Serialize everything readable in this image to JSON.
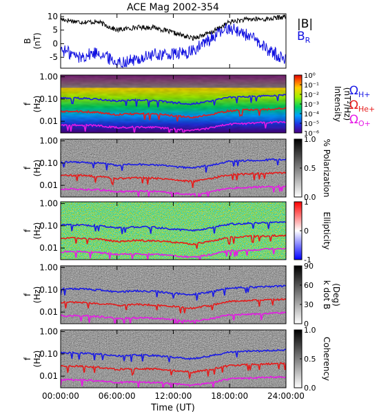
{
  "title": "ACE Mag 2002-354",
  "x_axis": {
    "label": "Time (UT)",
    "tick_labels": [
      "00:00:00",
      "06:00:00",
      "12:00:00",
      "18:00:00",
      "24:00:00"
    ],
    "range_hours": [
      0,
      24
    ]
  },
  "panels": [
    {
      "id": "b-field",
      "type": "line",
      "ylabel_top": "B",
      "ylabel_bottom": "(nT)",
      "ylim": [
        -9,
        11
      ],
      "yticks": [
        "10",
        "5",
        "0",
        "-5"
      ],
      "legend": [
        {
          "label": "|B|",
          "color": "#000000"
        },
        {
          "label": "B",
          "subscript": "R",
          "color": "#1010e0"
        }
      ]
    },
    {
      "id": "intensity",
      "type": "heatmap",
      "ylabel_top": "f",
      "ylabel_bottom": "(Hz)",
      "ylim_log": [
        0.003,
        1.2
      ],
      "yticks": [
        "1.00",
        "0.10",
        "0.01"
      ],
      "colorbar": {
        "palette": "rainbow",
        "labels": [
          "10⁰",
          "10⁻¹",
          "10⁻²",
          "10⁻³",
          "10⁻⁴",
          "10⁻⁵",
          "10⁻⁶"
        ],
        "title_line1": "Intensity",
        "title_line2": "(nT²/Hz)"
      },
      "ion_legend": [
        {
          "symbol": "Ω",
          "subscript": "H+",
          "color": "#1a1ae6"
        },
        {
          "symbol": "Ω",
          "subscript": "He+",
          "color": "#e61a1a"
        },
        {
          "symbol": "Ω",
          "subscript": "O+",
          "color": "#e619e6"
        }
      ]
    },
    {
      "id": "polarization",
      "type": "heatmap",
      "ylabel_top": "f",
      "ylabel_bottom": "(Hz)",
      "yticks": [
        "1.00",
        "0.10",
        "0.01"
      ],
      "colorbar": {
        "palette": "gray",
        "labels": [
          "1.0",
          "0.5",
          "0.0"
        ],
        "title_line1": "% Polarization",
        "title_line2": ""
      }
    },
    {
      "id": "ellipticity",
      "type": "heatmap",
      "ylabel_top": "f",
      "ylabel_bottom": "(Hz)",
      "yticks": [
        "1.00",
        "0.10",
        "0.01"
      ],
      "colorbar": {
        "palette": "bwr",
        "labels": [
          "1",
          "0",
          "-1"
        ],
        "title_line1": "Ellipticity",
        "title_line2": ""
      }
    },
    {
      "id": "kdotb",
      "type": "heatmap",
      "ylabel_top": "f",
      "ylabel_bottom": "(Hz)",
      "yticks": [
        "1.00",
        "0.10",
        "0.01"
      ],
      "colorbar": {
        "palette": "gray",
        "labels": [
          "90",
          "60",
          "30",
          "0"
        ],
        "title_line1": "k dot B",
        "title_line2": "(Deg)"
      }
    },
    {
      "id": "coherency",
      "type": "heatmap",
      "ylabel_top": "f",
      "ylabel_bottom": "(Hz)",
      "yticks": [
        "1.00",
        "0.10",
        "0.01"
      ],
      "colorbar": {
        "palette": "gray",
        "labels": [
          "1.0",
          "0.5",
          "0.0"
        ],
        "title_line1": "Coherency",
        "title_line2": ""
      }
    }
  ],
  "chart_data": {
    "type": "line",
    "title": "ACE Mag 2002-354",
    "xlabel": "Time (UT)",
    "x_hours": [
      0,
      2,
      4,
      6,
      8,
      10,
      12,
      14,
      16,
      18,
      20,
      22,
      24
    ],
    "series": [
      {
        "name": "|B|",
        "color": "#000000",
        "values": [
          9,
          8,
          8,
          5,
          6,
          6,
          4,
          2,
          4,
          8,
          9,
          9,
          10
        ]
      },
      {
        "name": "BR",
        "color": "#1010e0",
        "values": [
          -2,
          -5,
          -3,
          -7,
          -6,
          -4,
          -4,
          -3,
          2,
          6,
          3,
          -2,
          -6
        ]
      }
    ],
    "ylim": [
      -9,
      11
    ],
    "gyrofrequency_hz": {
      "x_hours": [
        0,
        2,
        4,
        6,
        8,
        10,
        12,
        14,
        16,
        18,
        20,
        22,
        24
      ],
      "H+": [
        0.11,
        0.11,
        0.1,
        0.08,
        0.09,
        0.085,
        0.07,
        0.06,
        0.08,
        0.12,
        0.13,
        0.14,
        0.15
      ],
      "He+": [
        0.028,
        0.028,
        0.025,
        0.02,
        0.022,
        0.021,
        0.018,
        0.015,
        0.02,
        0.03,
        0.033,
        0.035,
        0.038
      ],
      "O+": [
        0.0068,
        0.0068,
        0.0063,
        0.0052,
        0.0055,
        0.0053,
        0.0045,
        0.0038,
        0.005,
        0.0075,
        0.008,
        0.0088,
        0.0095
      ]
    }
  }
}
